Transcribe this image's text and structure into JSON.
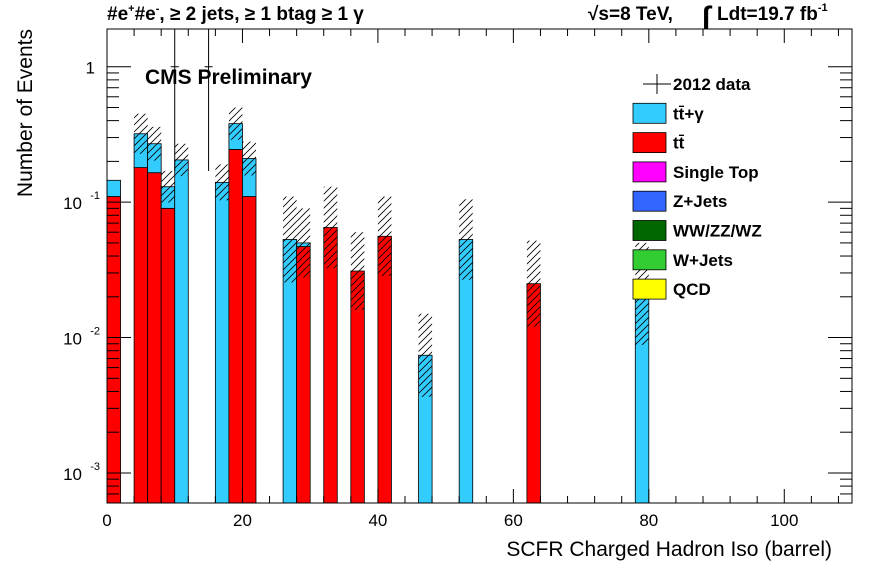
{
  "header": {
    "channel": "#e",
    "channel_sup1": "+",
    "channel_mid": "#e",
    "channel_sup2": "-",
    "channel_rest": ", ≥ 2 jets, ≥ 1 btag ≥ 1 γ",
    "energy": "√s=8 TeV,",
    "lumi_int": "∫",
    "lumi": "Ldt=19.7 fb",
    "lumi_sup": "-1"
  },
  "label": "CMS Preliminary",
  "chart_data": {
    "type": "bar",
    "stacked": true,
    "xlabel": "SCFR Charged Hadron Iso (barrel)",
    "ylabel": "Number of Events",
    "xlim": [
      0,
      110
    ],
    "ylim": [
      0.0006,
      1.9
    ],
    "yscale": "log",
    "bin_width": 2,
    "x_ticks": [
      0,
      20,
      40,
      60,
      80,
      100
    ],
    "x_tick_labels": [
      "0",
      "20",
      "40",
      "60",
      "80",
      "100"
    ],
    "y_ticks": [
      0.001,
      0.01,
      0.1,
      1
    ],
    "y_tick_labels": [
      {
        "base": "10",
        "exp": "-3"
      },
      {
        "base": "10",
        "exp": "-2"
      },
      {
        "base": "10",
        "exp": "-1"
      },
      {
        "base": "1",
        "exp": ""
      }
    ],
    "bin_low_edges": [
      0,
      4,
      6,
      8,
      10,
      16,
      18,
      20,
      26,
      28,
      32,
      36,
      40,
      46,
      52,
      62,
      78
    ],
    "series": [
      {
        "name": "tt̄",
        "color": "#ff0000",
        "values": [
          0.11,
          0.18,
          0.165,
          0.09,
          0,
          0,
          0.245,
          0.11,
          0,
          0.047,
          0.065,
          0.031,
          0.056,
          0,
          0,
          0.025,
          0
        ]
      },
      {
        "name": "tt̄+γ",
        "color": "#33ccff",
        "values": [
          0.035,
          0.14,
          0.105,
          0.04,
          0.205,
          0.14,
          0.135,
          0.1,
          0.053,
          0.003,
          0,
          0,
          0,
          0.0074,
          0.053,
          0,
          0.021
        ]
      }
    ],
    "uncertainty_totals": [
      0.145,
      0.45,
      0.36,
      0.17,
      0.27,
      0.19,
      0.5,
      0.28,
      0.11,
      0.09,
      0.13,
      0.06,
      0.11,
      0.015,
      0.105,
      0.052,
      0.05
    ],
    "data_points": [
      {
        "x": 10,
        "y": 1,
        "err_low": 0.83,
        "err_high": 1.3
      },
      {
        "x": 15,
        "y": 1,
        "err_low": 0.83,
        "err_high": 1.3
      }
    ],
    "legend": [
      {
        "label": "2012 data",
        "style": "marker",
        "color": "#000000"
      },
      {
        "label": "tt̄+γ",
        "style": "box",
        "color": "#33ccff"
      },
      {
        "label": "tt̄",
        "style": "box",
        "color": "#ff0000"
      },
      {
        "label": "Single Top",
        "style": "box",
        "color": "#ff00ff"
      },
      {
        "label": "Z+Jets",
        "style": "box",
        "color": "#3366ff"
      },
      {
        "label": "WW/ZZ/WZ",
        "style": "box",
        "color": "#006600"
      },
      {
        "label": "W+Jets",
        "style": "box",
        "color": "#33cc33"
      },
      {
        "label": "QCD",
        "style": "box",
        "color": "#ffff00"
      }
    ],
    "legend_position": "top-right"
  }
}
